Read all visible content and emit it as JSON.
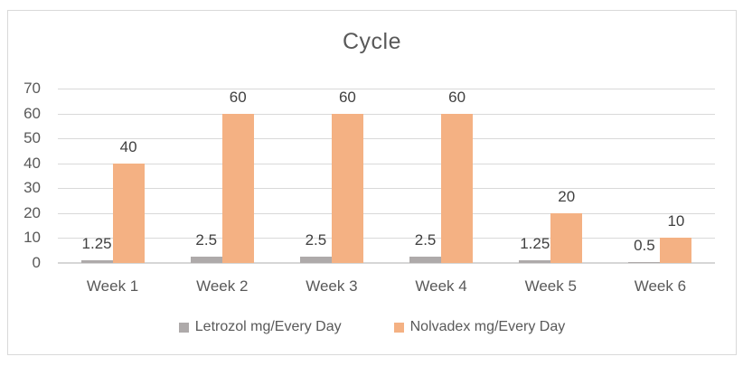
{
  "chart_data": {
    "type": "bar",
    "title": "Cycle",
    "categories": [
      "Week 1",
      "Week 2",
      "Week 3",
      "Week 4",
      "Week 5",
      "Week 6"
    ],
    "series": [
      {
        "name": "Letrozol mg/Every Day",
        "color": "#AEAAAA",
        "values": [
          1.25,
          2.5,
          2.5,
          2.5,
          1.25,
          0.5
        ],
        "data_labels": [
          "1.25",
          "2.5",
          "2.5",
          "2.5",
          "1.25",
          "0.5"
        ]
      },
      {
        "name": "Nolvadex mg/Every Day",
        "color": "#F4B183",
        "values": [
          40,
          60,
          60,
          60,
          20,
          10
        ],
        "data_labels": [
          "40",
          "60",
          "60",
          "60",
          "20",
          "10"
        ]
      }
    ],
    "xlabel": "",
    "ylabel": "",
    "ylim": [
      0,
      70
    ],
    "yticks": [
      0,
      10,
      20,
      30,
      40,
      50,
      60,
      70
    ],
    "grid": true,
    "legend_position": "bottom"
  },
  "styles": {
    "gridline_color": "#D9D9D9",
    "zero_axis_color": "#D6D6D6",
    "tick_label_color": "#595959",
    "category_label_color": "#595959",
    "data_label_color": "#404040",
    "title_color": "#595959",
    "legend_text_color": "#595959",
    "frame_border_color": "#D9D9D9",
    "background_color": "#FFFFFF"
  }
}
